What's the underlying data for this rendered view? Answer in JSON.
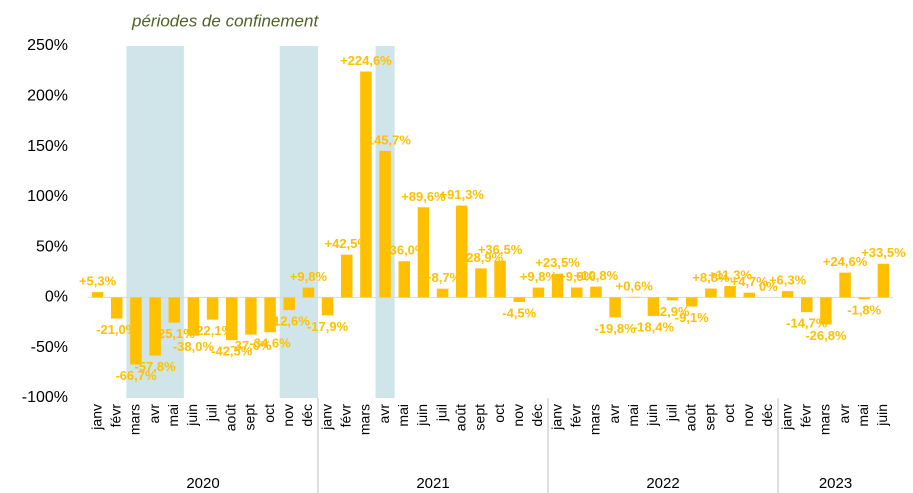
{
  "chart_data": {
    "type": "bar",
    "annotation": "périodes de confinement",
    "color": "#ffc000",
    "ylim": [
      -100,
      250
    ],
    "yticks": [
      {
        "value": -100,
        "label": "-100%"
      },
      {
        "value": -50,
        "label": "-50%"
      },
      {
        "value": 0,
        "label": "0%"
      },
      {
        "value": 50,
        "label": "50%"
      },
      {
        "value": 100,
        "label": "100%"
      },
      {
        "value": 150,
        "label": "150%"
      },
      {
        "value": 200,
        "label": "200%"
      },
      {
        "value": 250,
        "label": "250%"
      }
    ],
    "groups": [
      {
        "label": "2020",
        "categories": [
          "janv",
          "févr",
          "mars",
          "avr",
          "mai",
          "juin",
          "juil",
          "août",
          "sept",
          "oct",
          "nov",
          "déc"
        ],
        "values": [
          5.3,
          -21.0,
          -66.7,
          -57.8,
          -25.1,
          -38.0,
          -22.1,
          -42.5,
          -37.0,
          -34.6,
          -12.6,
          9.8
        ],
        "value_labels": [
          "+5,3%",
          "-21,0%",
          "-66,7%",
          "-57,8%",
          "-25,1%",
          "-38,0%",
          "-22,1%",
          "-42,5%",
          "-37,0%",
          "-34,6%",
          "-12,6%",
          "+9,8%"
        ]
      },
      {
        "label": "2021",
        "categories": [
          "janv",
          "févr",
          "mars",
          "avr",
          "mai",
          "juin",
          "juil",
          "août",
          "sept",
          "oct",
          "nov",
          "déc"
        ],
        "values": [
          -17.9,
          42.5,
          224.6,
          145.7,
          36.0,
          89.6,
          8.7,
          91.3,
          28.9,
          36.5,
          -4.5,
          9.8
        ],
        "value_labels": [
          "-17,9%",
          "+42,5%",
          "+224,6%",
          "+145,7%",
          "+36,0%",
          "+89,6%",
          "+8,7%",
          "+91,3%",
          "+28,9%",
          "+36,5%",
          "-4,5%",
          "+9,8%"
        ]
      },
      {
        "label": "2022",
        "categories": [
          "janv",
          "févr",
          "mars",
          "avr",
          "mai",
          "juin",
          "juil",
          "août",
          "sept",
          "oct",
          "nov",
          "déc"
        ],
        "values": [
          23.5,
          9.9,
          10.8,
          -19.8,
          0.6,
          -18.4,
          -2.9,
          -9.1,
          8.8,
          11.3,
          4.7,
          0
        ],
        "value_labels": [
          "+23,5%",
          "+9,9%",
          "+10,8%",
          "-19,8%",
          "+0,6%",
          "-18,4%",
          "-2,9%",
          "-9,1%",
          "+8,8%",
          "+11,3%",
          "+4,7%",
          "0%"
        ]
      },
      {
        "label": "2023",
        "categories": [
          "janv",
          "févr",
          "mars",
          "avr",
          "mai",
          "juin"
        ],
        "values": [
          6.3,
          -14.7,
          -26.8,
          24.6,
          -1.8,
          33.5
        ],
        "value_labels": [
          "+6,3%",
          "-14,7%",
          "-26,8%",
          "+24,6%",
          "-1,8%",
          "+33,5%"
        ]
      }
    ]
  }
}
